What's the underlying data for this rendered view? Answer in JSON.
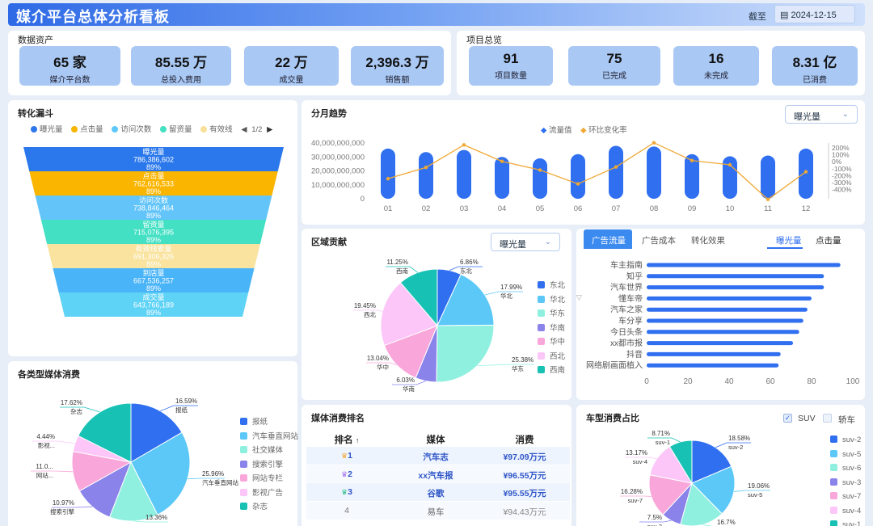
{
  "header": {
    "title": "媒介平台总体分析看板",
    "date_label": "截至",
    "date_value": "2024-12-15",
    "calendar_icon": "calendar-icon"
  },
  "assets": {
    "title": "数据资产",
    "items": [
      {
        "value": "65 家",
        "label": "媒介平台数"
      },
      {
        "value": "85.55 万",
        "label": "总投入费用"
      },
      {
        "value": "22 万",
        "label": "成交量"
      },
      {
        "value": "2,396.3 万",
        "label": "销售额"
      }
    ]
  },
  "projects": {
    "title": "项目总览",
    "items": [
      {
        "value": "91",
        "label": "项目数量"
      },
      {
        "value": "75",
        "label": "已完成"
      },
      {
        "value": "16",
        "label": "未完成"
      },
      {
        "value": "8.31 亿",
        "label": "已消费"
      }
    ]
  },
  "funnel": {
    "title": "转化漏斗",
    "legend": [
      "曝光量",
      "点击量",
      "访问次数",
      "留资量",
      "有效线"
    ],
    "legend_colors": [
      "#2f77ec",
      "#f7b500",
      "#5ec8f9",
      "#43e0c1",
      "#f8e098"
    ],
    "page": "1/2",
    "stages": [
      {
        "name": "曝光量",
        "value": "786,386,602",
        "pct": "89%",
        "color": "#2a78ec"
      },
      {
        "name": "点击量",
        "value": "762,616,533",
        "pct": "89%",
        "color": "#fab500"
      },
      {
        "name": "访问次数",
        "value": "738,846,464",
        "pct": "89%",
        "color": "#62c4f9"
      },
      {
        "name": "留资量",
        "value": "715,076,395",
        "pct": "89%",
        "color": "#43e0c4"
      },
      {
        "name": "有效线索量",
        "value": "691,306,326",
        "pct": "89%",
        "color": "#f9e39f"
      },
      {
        "name": "到店量",
        "value": "667,536,257",
        "pct": "89%",
        "color": "#4ab4f8"
      },
      {
        "name": "成交量",
        "value": "643,766,189",
        "pct": "89%",
        "color": "#5fd3f6"
      }
    ]
  },
  "trend": {
    "title": "分月趋势",
    "select_value": "曝光量",
    "legend": [
      "流量值",
      "环比变化率"
    ],
    "chart_data": {
      "type": "bar",
      "categories": [
        "01",
        "02",
        "03",
        "04",
        "05",
        "06",
        "07",
        "08",
        "09",
        "10",
        "11",
        "12"
      ],
      "series": [
        {
          "name": "流量值",
          "type": "bar",
          "values": [
            36000000000,
            33500000000,
            35000000000,
            30000000000,
            29000000000,
            32000000000,
            38000000000,
            37500000000,
            32000000000,
            30500000000,
            31000000000,
            36000000000
          ]
        },
        {
          "name": "环比变化率",
          "type": "line",
          "values": [
            -190,
            -60,
            200,
            10,
            -90,
            -250,
            -55,
            225,
            20,
            -30,
            -430,
            -110
          ]
        }
      ],
      "y_ticks": [
        "0",
        "10,000,000,000",
        "20,000,000,000",
        "30,000,000,000",
        "40,000,000,000"
      ],
      "y2_ticks": [
        "200%",
        "100%",
        "0%",
        "-100%",
        "-200%",
        "-300%",
        "-400%"
      ],
      "ylim": [
        0,
        40000000000
      ],
      "y2lim": [
        -450,
        250
      ]
    }
  },
  "region": {
    "title": "区域贡献",
    "select_value": "曝光量",
    "chart_data": {
      "type": "pie",
      "categories": [
        "东北",
        "华北",
        "华东",
        "华南",
        "华中",
        "西北",
        "西南"
      ],
      "values": [
        6.86,
        17.99,
        25.38,
        6.03,
        13.04,
        19.45,
        11.25
      ],
      "labels": [
        "6.86%",
        "17.99%",
        "25.38%",
        "6.03%",
        "13.04%",
        "19.45%",
        "11.25%"
      ],
      "colors": [
        "#2f6ff0",
        "#5cc8f8",
        "#8ff0e0",
        "#8a83ea",
        "#f9a7da",
        "#fcc6f8",
        "#17c1b4"
      ]
    },
    "legend": [
      "东北",
      "华北",
      "华东",
      "华南",
      "华中",
      "西北",
      "西南"
    ]
  },
  "ads": {
    "tabs": [
      "广告流量",
      "广告成本",
      "转化效果"
    ],
    "subtabs": [
      "曝光量",
      "点击量"
    ],
    "chart_data": {
      "type": "bar",
      "orientation": "horizontal",
      "categories": [
        "车主指南",
        "知乎",
        "汽车世界",
        "懂车帝",
        "汽车之家",
        "车分享",
        "今日头条",
        "xx都市报",
        "抖音",
        "网络剧画面植入"
      ],
      "values": [
        94,
        86,
        86,
        80,
        78,
        76,
        74,
        71,
        65,
        64
      ],
      "x_ticks": [
        "0",
        "20",
        "40",
        "60",
        "80",
        "100"
      ],
      "xlim": [
        0,
        100
      ]
    }
  },
  "media_types": {
    "title": "各类型媒体消费",
    "chart_data": {
      "type": "pie",
      "categories": [
        "报纸",
        "汽车垂直网站",
        "社交媒体",
        "搜索引擎",
        "网站专栏",
        "影视广告",
        "杂志"
      ],
      "values": [
        16.59,
        25.96,
        13.36,
        10.97,
        11.06,
        4.44,
        17.62
      ],
      "labels": [
        "16.59%",
        "25.96%",
        "13.36%",
        "10.97%",
        "11.0...",
        "4.44%",
        "17.62%"
      ],
      "slice_labels": [
        "报纸",
        "汽车垂直网站",
        "",
        "搜索引擎",
        "网站...",
        "影视...",
        "杂志"
      ],
      "colors": [
        "#2f6ff0",
        "#5cc8f8",
        "#8ff0e0",
        "#8a83ea",
        "#f9a7da",
        "#fcc6f8",
        "#17c1b4"
      ]
    },
    "legend": [
      "报纸",
      "汽车垂直网站",
      "社交媒体",
      "搜索引擎",
      "网站专栏",
      "影视广告",
      "杂志"
    ]
  },
  "ranking": {
    "title": "媒体消费排名",
    "headers": [
      "排名",
      "媒体",
      "消费"
    ],
    "sort_icon": "↑",
    "rows": [
      {
        "rank": "1",
        "media": "汽车志",
        "spend": "¥97.09万元"
      },
      {
        "rank": "2",
        "media": "xx汽车报",
        "spend": "¥96.55万元"
      },
      {
        "rank": "3",
        "media": "谷歌",
        "spend": "¥95.55万元"
      },
      {
        "rank": "4",
        "media": "易车",
        "spend": "¥94.43万元"
      }
    ]
  },
  "car_types": {
    "title": "车型消费占比",
    "checks": [
      {
        "label": "SUV",
        "checked": true
      },
      {
        "label": "轿车",
        "checked": false
      }
    ],
    "chart_data": {
      "type": "pie",
      "categories": [
        "suv-2",
        "suv-5",
        "suv-6",
        "suv-3",
        "suv-7",
        "suv-4",
        "suv-1"
      ],
      "values": [
        18.58,
        19.06,
        16.7,
        7.5,
        16.28,
        13.17,
        8.71
      ],
      "labels": [
        "18.58%",
        "19.06%",
        "16.7%",
        "7.5%",
        "16.28%",
        "13.17%",
        "8.71%"
      ],
      "colors": [
        "#2f6ff0",
        "#5cc8f8",
        "#8ff0e0",
        "#8a83ea",
        "#f9a7da",
        "#fcc6f8",
        "#17c1b4"
      ]
    },
    "legend": [
      "suv-2",
      "suv-5",
      "suv-6",
      "suv-3",
      "suv-7",
      "suv-4",
      "suv-1"
    ]
  }
}
